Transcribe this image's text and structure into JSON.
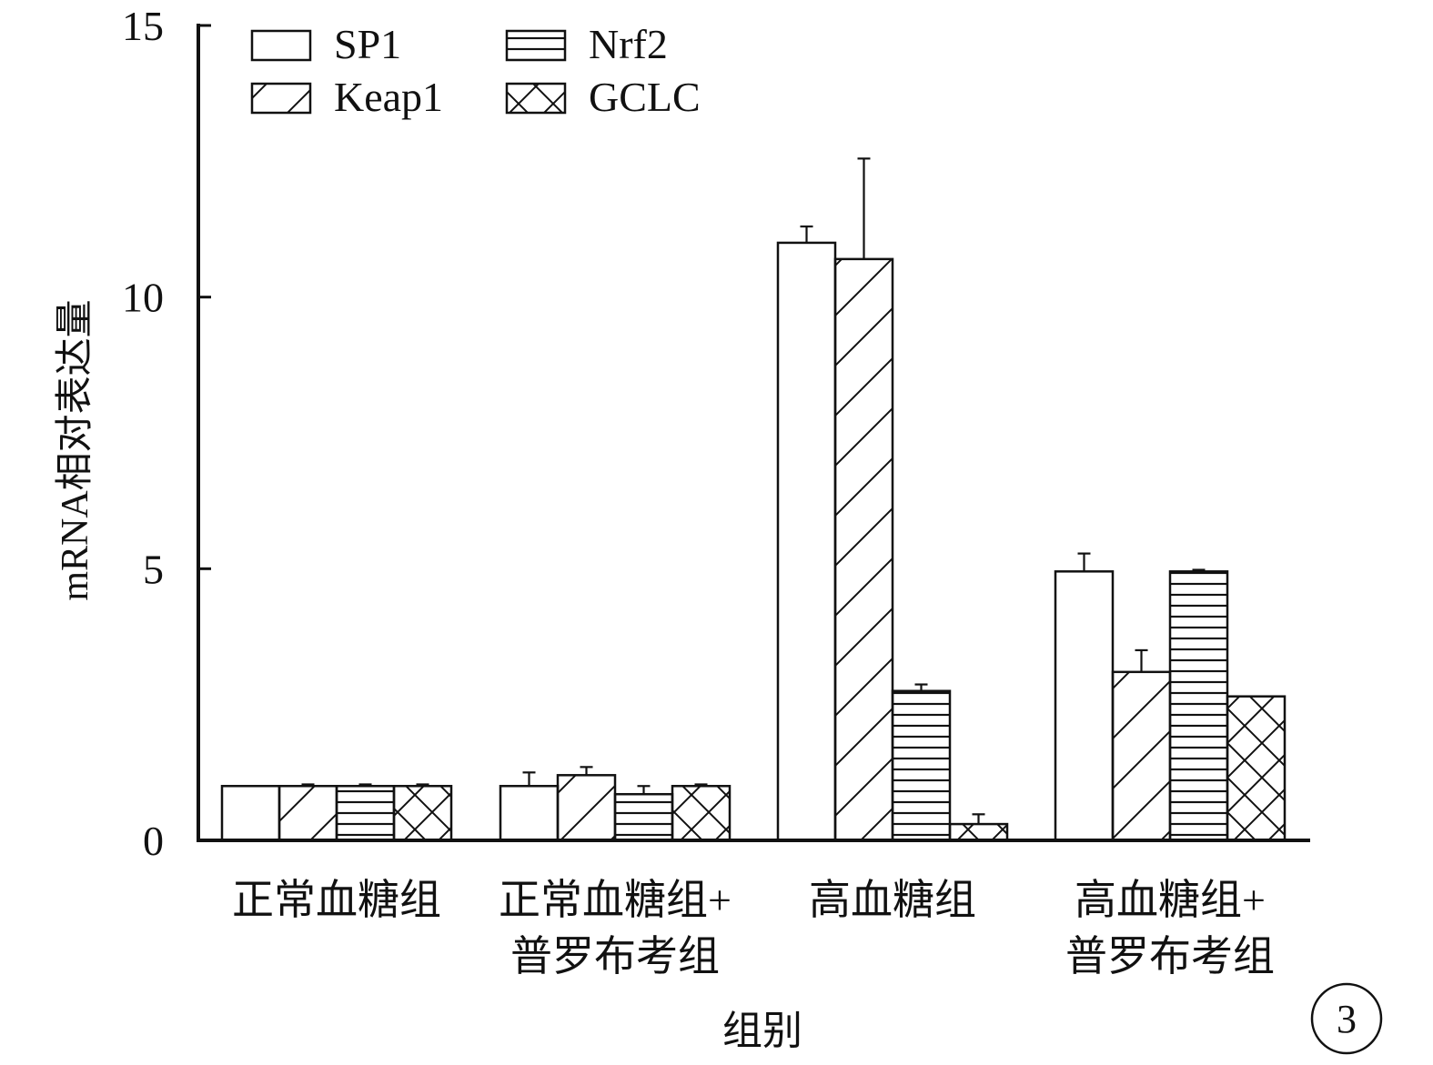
{
  "chart_data": {
    "type": "bar",
    "xlabel": "组别",
    "ylabel": "mRNA相对表达量",
    "ylim": [
      0,
      15
    ],
    "yticks": [
      0,
      5,
      10,
      15
    ],
    "legend_position": "top-left",
    "panel_label": "3",
    "categories": [
      [
        "正常血糖组"
      ],
      [
        "正常血糖组+",
        "普罗布考组"
      ],
      [
        "高血糖组"
      ],
      [
        "高血糖组+",
        "普罗布考组"
      ]
    ],
    "series": [
      {
        "name": "SP1",
        "pattern": "none",
        "values": [
          1.0,
          1.0,
          11.0,
          4.95
        ],
        "errors": [
          0.0,
          0.25,
          0.3,
          0.33
        ]
      },
      {
        "name": "Keap1",
        "pattern": "diagonal",
        "values": [
          1.0,
          1.2,
          10.7,
          3.1
        ],
        "errors": [
          0.03,
          0.15,
          1.85,
          0.4
        ]
      },
      {
        "name": "Nrf2",
        "pattern": "horizontal",
        "values": [
          1.0,
          0.85,
          2.75,
          4.95
        ],
        "errors": [
          0.03,
          0.15,
          0.12,
          0.03
        ]
      },
      {
        "name": "GCLC",
        "pattern": "crosshatch",
        "values": [
          1.0,
          1.0,
          0.3,
          2.65
        ],
        "errors": [
          0.03,
          0.03,
          0.18,
          0.0
        ]
      }
    ],
    "colors": {
      "stroke": "#111111",
      "fill": "#ffffff"
    }
  }
}
